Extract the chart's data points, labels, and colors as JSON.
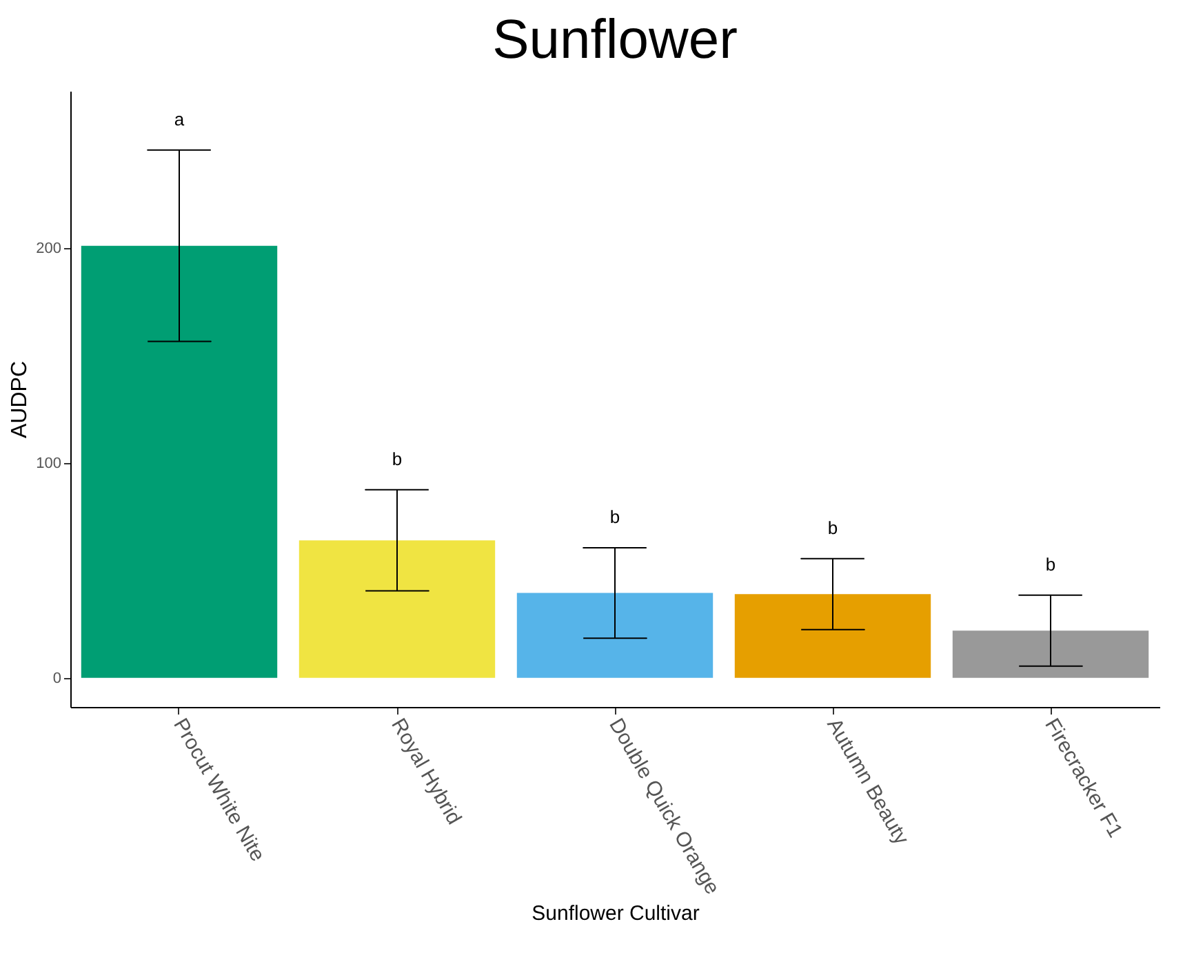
{
  "chart_data": {
    "type": "bar",
    "title": "Sunflower",
    "xlabel": "Sunflower Cultivar",
    "ylabel": "AUDPC",
    "categories": [
      "Procut White Nite",
      "Royal Hybrid",
      "Double Quick Orange",
      "Autumn Beauty",
      "Firecracker F1"
    ],
    "values": [
      201,
      64,
      39.5,
      39,
      22
    ],
    "colors": [
      "#009e73",
      "#f0e442",
      "#56b4e9",
      "#e69f00",
      "#999999"
    ],
    "errors": [
      44.5,
      23.5,
      21,
      16.5,
      16.5
    ],
    "annotations": [
      "a",
      "b",
      "b",
      "b",
      "b"
    ],
    "ylim": [
      -13.5,
      273
    ],
    "yticks": [
      0,
      100,
      200
    ],
    "grid": false,
    "legend": false
  }
}
